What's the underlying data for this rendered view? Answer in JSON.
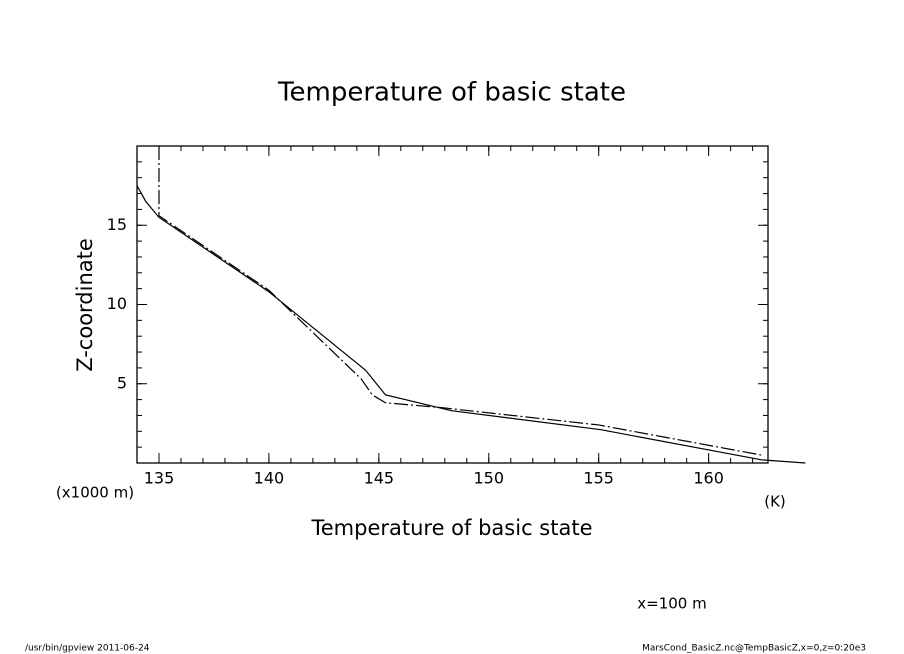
{
  "chart_data": {
    "type": "line",
    "title": "Temperature of basic state",
    "x_label": "Temperature of basic state",
    "y_label": "Z-coordinate",
    "y_unit": "(x1000 m)",
    "x_unit": "(K)",
    "annotation": "x=100 m",
    "footer_left": "/usr/bin/gpview   2011-06-24",
    "footer_right": "MarsCond_BasicZ.nc@TempBasicZ,x=0,z=0:20e3",
    "xlim": [
      134,
      162.7
    ],
    "ylim": [
      0,
      20
    ],
    "xticks": [
      135,
      140,
      145,
      150,
      155,
      160
    ],
    "yticks": [
      5,
      10,
      15
    ],
    "xminorticks": [
      135,
      136,
      137,
      138,
      139,
      140,
      141,
      142,
      143,
      144,
      145,
      146,
      147,
      148,
      149,
      150,
      151,
      152,
      153,
      154,
      155,
      156,
      157,
      158,
      159,
      160,
      161,
      162
    ],
    "yminorticks": [
      1,
      2,
      3,
      4,
      5,
      6,
      7,
      8,
      9,
      10,
      11,
      12,
      13,
      14,
      15,
      16,
      17,
      18,
      19
    ],
    "series": [
      {
        "color": "#000000",
        "dashed": false,
        "x": [
          134.0,
          134.4,
          135.0,
          140.0,
          144.4,
          145.3,
          148.3,
          155.1,
          162.4,
          164.4
        ],
        "values": [
          17.5,
          16.5,
          15.5,
          10.8,
          5.85,
          4.3,
          3.3,
          2.1,
          0.2,
          0
        ]
      },
      {
        "color": "#000000",
        "dashed": true,
        "x": [
          135.0,
          135.0,
          140.0,
          144.2,
          144.7,
          145.3,
          147.8,
          155.0,
          162.4
        ],
        "values": [
          20,
          15.6,
          10.9,
          5.3,
          4.3,
          3.8,
          3.5,
          2.4,
          0.5
        ]
      }
    ]
  }
}
